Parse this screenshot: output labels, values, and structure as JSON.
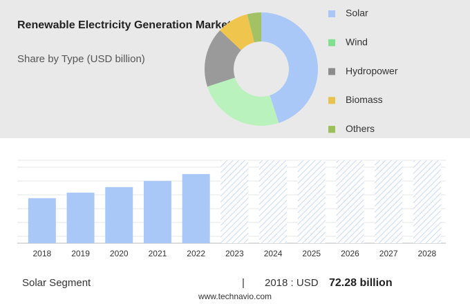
{
  "chart_data": [
    {
      "type": "pie",
      "title": "Renewable Electricity Generation Market",
      "subtitle": "Share by Type (USD billion)",
      "categories": [
        "Solar",
        "Wind",
        "Hydropower",
        "Biomass",
        "Others"
      ],
      "values": [
        45,
        25,
        17,
        9,
        4
      ],
      "colors": [
        "#a9c8f8",
        "#b9f2bd",
        "#9a9a9a",
        "#f0c54e",
        "#a3c266"
      ],
      "legend_colors": [
        "#a9c8f8",
        "#7fe08f",
        "#8c8c8c",
        "#e8c24a",
        "#9cbf5a"
      ]
    },
    {
      "type": "bar",
      "categories": [
        "2018",
        "2019",
        "2020",
        "2021",
        "2022",
        "2023",
        "2024",
        "2025",
        "2026",
        "2027",
        "2028"
      ],
      "values": [
        72.28,
        81.1,
        90,
        100,
        111,
        null,
        null,
        null,
        null,
        null,
        null
      ],
      "value_labels": [
        "72.28 billion",
        null,
        null,
        null,
        null,
        null,
        null,
        null,
        null,
        null,
        null
      ],
      "color": "#a9c8f8",
      "ylim": [
        0,
        133
      ],
      "segment": "Solar Segment",
      "highlight_prefix": "2018 : USD",
      "separator": "|",
      "source": "www.technavio.com"
    }
  ]
}
